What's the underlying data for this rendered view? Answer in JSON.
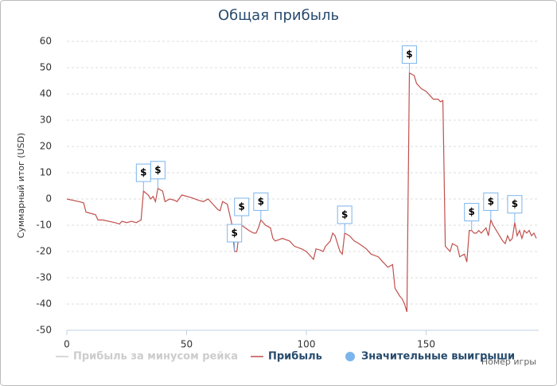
{
  "chart_data": {
    "type": "line",
    "title": "Общая прибыль",
    "x_label": "Номер игры",
    "y_label": "Суммарный итог (USD)",
    "xlim": [
      0,
      197
    ],
    "ylim": [
      -50,
      60
    ],
    "xticks": [
      0,
      50,
      100,
      150
    ],
    "yticks": [
      -50,
      -40,
      -30,
      -20,
      -10,
      0,
      10,
      20,
      30,
      40,
      50,
      60
    ],
    "grid": true,
    "series": [
      {
        "name": "Прибыль за минусом рейка",
        "color": "#cccccc",
        "visible": false,
        "x": [],
        "values": []
      },
      {
        "name": "Прибыль",
        "color": "#c0504d",
        "visible": true,
        "x": [
          0,
          5,
          7,
          8,
          12,
          13,
          15,
          20,
          22,
          23,
          25,
          27,
          29,
          31,
          32,
          34,
          35,
          36,
          37,
          38,
          40,
          41,
          43,
          45,
          46,
          48,
          52,
          55,
          57,
          59,
          61,
          63,
          64,
          65,
          67,
          69,
          70,
          71,
          72,
          73,
          76,
          78,
          79,
          80,
          81,
          83,
          85,
          86,
          87,
          90,
          93,
          95,
          98,
          100,
          102,
          103,
          104,
          106,
          107,
          108,
          110,
          111,
          112,
          114,
          115,
          116,
          118,
          120,
          122,
          125,
          127,
          130,
          132,
          134,
          136,
          137,
          139,
          140,
          141,
          142,
          143,
          145,
          146,
          148,
          150,
          152,
          153,
          155,
          156,
          157,
          158,
          160,
          161,
          163,
          164,
          166,
          167,
          168,
          169,
          170,
          171,
          172,
          173,
          175,
          176,
          177,
          178,
          180,
          182,
          183,
          184,
          185,
          186,
          187,
          188,
          189,
          190,
          191,
          192,
          193,
          194,
          195,
          196
        ],
        "values": [
          0,
          -1,
          -1.5,
          -5,
          -6,
          -8,
          -8,
          -9,
          -9.5,
          -8.5,
          -9,
          -8.5,
          -9,
          -8,
          3,
          1.5,
          0,
          1,
          -1,
          4,
          3,
          -1,
          0,
          -0.5,
          -1,
          1.5,
          0.5,
          -0.5,
          -1,
          0,
          -2,
          -4,
          -4.5,
          -1,
          -2,
          -10,
          -20,
          -20,
          -12,
          -10,
          -12,
          -13,
          -13,
          -11,
          -8,
          -10,
          -11,
          -15,
          -16,
          -15,
          -16,
          -18,
          -19,
          -20,
          -22,
          -23,
          -19,
          -19.5,
          -20,
          -18,
          -16,
          -13,
          -14,
          -20,
          -21,
          -13,
          -14,
          -16,
          -17,
          -19,
          -21,
          -22,
          -24,
          -26,
          -25,
          -34,
          -37,
          -38,
          -40,
          -43,
          48,
          47,
          44,
          42,
          41,
          39,
          38,
          38,
          37,
          37.5,
          -18,
          -20,
          -17,
          -18,
          -22,
          -21,
          -24,
          -12,
          -12,
          -13,
          -13,
          -12,
          -13,
          -11,
          -14,
          -8,
          -10,
          -13,
          -16,
          -17,
          -14,
          -16,
          -15,
          -9,
          -14,
          -12,
          -15,
          -12,
          -13,
          -12,
          -14,
          -13,
          -15
        ]
      },
      {
        "name": "Значительные выигрыши",
        "color": "#7cb5ec",
        "visible": true,
        "title": "$",
        "x": [
          32,
          38,
          70,
          73,
          81,
          116,
          143,
          169,
          177,
          187
        ],
        "values": [
          3,
          4,
          -20,
          -10,
          -8,
          -13,
          48,
          -12,
          -8,
          -9
        ]
      }
    ]
  }
}
